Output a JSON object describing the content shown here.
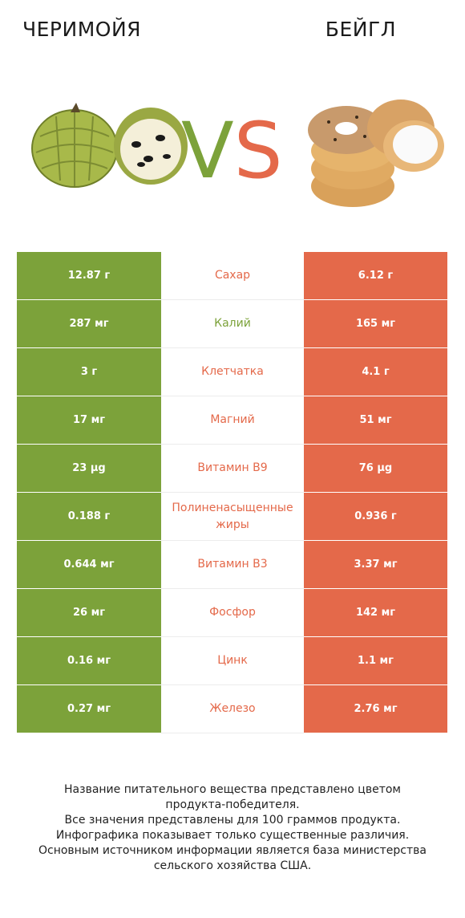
{
  "header": {
    "left_title": "ЧЕРИМОЙЯ",
    "right_title": "БЕЙГЛ",
    "vs_v": "V",
    "vs_s": "S"
  },
  "colors": {
    "left_accent": "#7ca23a",
    "right_accent": "#e4694a"
  },
  "rows": [
    {
      "left": "12.87 г",
      "nutrient": "Сахар",
      "right": "6.12 г",
      "winner": "right"
    },
    {
      "left": "287 мг",
      "nutrient": "Калий",
      "right": "165 мг",
      "winner": "left"
    },
    {
      "left": "3 г",
      "nutrient": "Клетчатка",
      "right": "4.1 г",
      "winner": "right"
    },
    {
      "left": "17 мг",
      "nutrient": "Магний",
      "right": "51 мг",
      "winner": "right"
    },
    {
      "left": "23 µg",
      "nutrient": "Витамин B9",
      "right": "76 µg",
      "winner": "right"
    },
    {
      "left": "0.188 г",
      "nutrient": "Полиненасыщенные жиры",
      "right": "0.936 г",
      "winner": "right"
    },
    {
      "left": "0.644 мг",
      "nutrient": "Витамин B3",
      "right": "3.37 мг",
      "winner": "right"
    },
    {
      "left": "26 мг",
      "nutrient": "Фосфор",
      "right": "142 мг",
      "winner": "right"
    },
    {
      "left": "0.16 мг",
      "nutrient": "Цинк",
      "right": "1.1 мг",
      "winner": "right"
    },
    {
      "left": "0.27 мг",
      "nutrient": "Железо",
      "right": "2.76 мг",
      "winner": "right"
    }
  ],
  "footer": {
    "line1": "Название питательного вещества представлено цветом",
    "line2": "продукта-победителя.",
    "line3": "Все значения представлены для 100 граммов продукта.",
    "line4": "Инфографика показывает только существенные различия.",
    "line5": "Основным источником информации является база министерства",
    "line6": "сельского хозяйства США."
  }
}
